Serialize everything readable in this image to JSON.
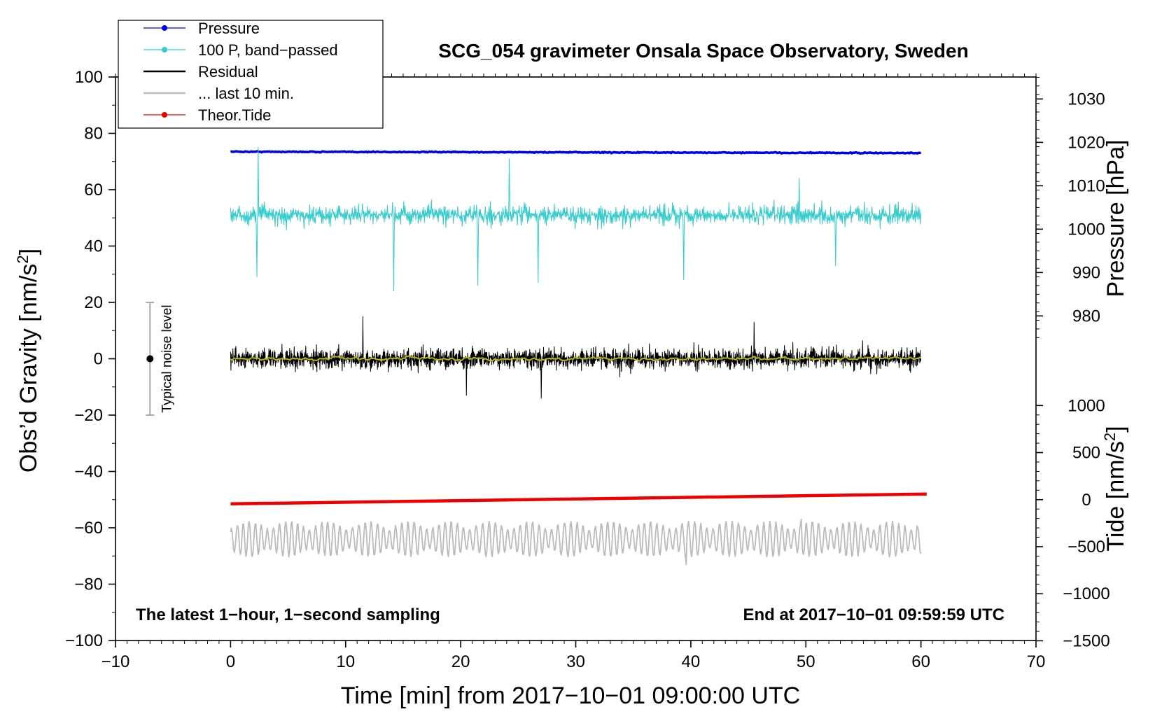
{
  "chart_data": {
    "type": "line",
    "title": "SCG_054 gravimeter Onsala Space Observatory, Sweden",
    "xlabel": "Time [min] from 2017−10−01 09:00:00 UTC",
    "ylabel_left": "Obs’d Gravity [nm/s",
    "ylabel_left_sup": "2",
    "ylabel_left_close": "]",
    "ylabel_pressure": "Pressure [hPa]",
    "ylabel_tide": "Tide [nm/s",
    "ylabel_tide_sup": "2",
    "ylabel_tide_close": "]",
    "xlim": [
      -10,
      70
    ],
    "ylim": [
      -100,
      100
    ],
    "x_ticks": [
      -10,
      0,
      10,
      20,
      30,
      40,
      50,
      60,
      70
    ],
    "x_tick_labels": [
      "−10",
      "0",
      "10",
      "20",
      "30",
      "40",
      "50",
      "60",
      "70"
    ],
    "y_ticks": [
      100,
      80,
      60,
      40,
      20,
      0,
      -20,
      -40,
      -60,
      -80,
      -100
    ],
    "y_tick_labels": [
      "100",
      "80",
      "60",
      "40",
      "20",
      "0",
      "−20",
      "−40",
      "−60",
      "−80",
      "−100"
    ],
    "pressure_axis": {
      "ticks": [
        1030,
        1020,
        1010,
        1000,
        990,
        980
      ],
      "tick_labels": [
        "1030",
        "1020",
        "1010",
        "1000",
        "990",
        "980"
      ],
      "gravity_at_980": 15.2,
      "gravity_per_hpa": 1.54
    },
    "tide_axis": {
      "ticks": [
        1000,
        500,
        0,
        -500,
        -1000,
        -1500
      ],
      "tick_labels": [
        "1000",
        "500",
        "0",
        "−500",
        "−1000",
        "−1500"
      ],
      "gravity_at_zero": -50,
      "gravity_per_unit": 0.0334
    },
    "legend": {
      "position": "top-left",
      "entries": [
        {
          "label": "Pressure",
          "color": "#0000ee",
          "marker": true
        },
        {
          "label": "100 P, band−passed",
          "color": "#33cccc",
          "marker": true
        },
        {
          "label": "Residual",
          "color": "#000000",
          "marker": false
        },
        {
          "label": "... last 10 min.",
          "color": "#bbbbbb",
          "marker": false
        },
        {
          "label": "Theor.Tide",
          "color": "#ee0000",
          "marker": true
        }
      ]
    },
    "series": [
      {
        "name": "Pressure",
        "color": "#0000ee",
        "start": 73.5,
        "end": 73.0,
        "noise": 0.4
      },
      {
        "name": "100 P, band−passed",
        "color": "#33cccc",
        "center": 51,
        "amplitude": 6,
        "spikes": [
          [
            2.4,
            75
          ],
          [
            2.3,
            29
          ],
          [
            14.2,
            24
          ],
          [
            21.5,
            26
          ],
          [
            24.2,
            71
          ],
          [
            26.7,
            27
          ],
          [
            39.4,
            28
          ],
          [
            49.4,
            64
          ],
          [
            52.6,
            33
          ]
        ]
      },
      {
        "name": "Residual",
        "color": "#000000",
        "center": 0,
        "amplitude": 6,
        "spikes": [
          [
            11.5,
            15
          ],
          [
            45.5,
            13
          ],
          [
            20.5,
            -13
          ],
          [
            27,
            -14
          ]
        ]
      },
      {
        "name": "smoothed residual",
        "color": "#b8b800",
        "center": 0,
        "amplitude": 0.9
      },
      {
        "name": "... last 10 min.",
        "color": "#bbbbbb",
        "center": -64,
        "amplitude": 5.5,
        "extremes": [
          [
            49.6,
            -57
          ],
          [
            39.6,
            -73
          ]
        ]
      },
      {
        "name": "Theor.Tide",
        "color": "#ee0000",
        "start": -51.5,
        "end": -48.0
      }
    ],
    "noise_bar": {
      "label": "Typical noise level",
      "x": -7,
      "y": 0,
      "low": -20,
      "high": 20
    },
    "annotations": {
      "left": "The latest 1−hour, 1−second sampling",
      "right": "End at 2017−10−01 09:59:59 UTC"
    }
  }
}
